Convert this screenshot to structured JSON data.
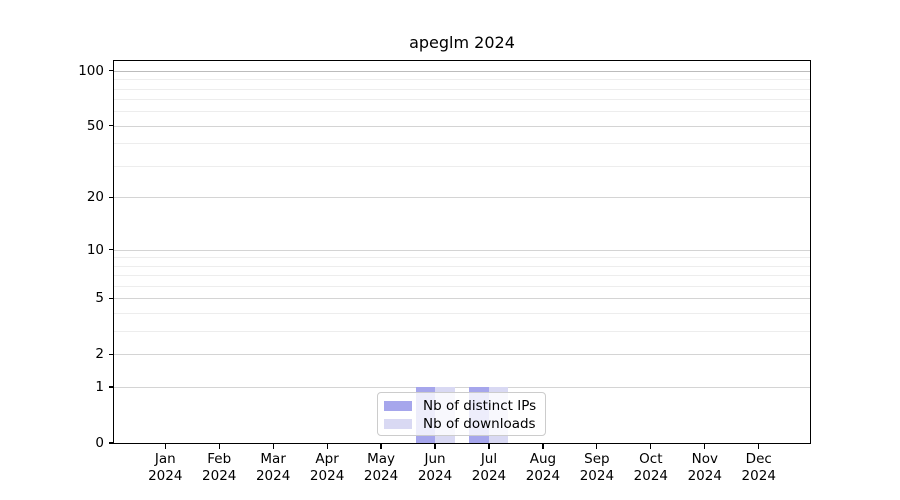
{
  "title": "apeglm 2024",
  "chart_data": {
    "type": "bar",
    "title": "apeglm 2024",
    "categories": [
      "Jan",
      "Feb",
      "Mar",
      "Apr",
      "May",
      "Jun",
      "Jul",
      "Aug",
      "Sep",
      "Oct",
      "Nov",
      "Dec"
    ],
    "x_tick_line2": "2024",
    "series": [
      {
        "name": "Nb of distinct IPs",
        "color": "#a6a6ec",
        "values": [
          0,
          0,
          0,
          0,
          0,
          1,
          1,
          0,
          0,
          0,
          0,
          0
        ]
      },
      {
        "name": "Nb of downloads",
        "color": "#d9d9f3",
        "values": [
          0,
          0,
          0,
          0,
          0,
          1,
          1,
          0,
          0,
          0,
          0,
          0
        ]
      }
    ],
    "xlabel": "",
    "ylabel": "",
    "y_scale": "log1p",
    "ylim": [
      0,
      113
    ],
    "y_ticks": [
      0,
      1,
      2,
      5,
      10,
      20,
      50,
      100
    ],
    "y_minor_ticks": [
      3,
      4,
      6,
      7,
      8,
      9,
      30,
      40,
      60,
      70,
      80,
      90
    ],
    "grid": true,
    "legend_position": "bottom-center",
    "colors": {
      "major_grid": "#d4d4d4",
      "top_grid": "#bcbcbc",
      "minor_grid": "#ededed",
      "axis": "#000000",
      "legend_border": "#cccccc"
    }
  }
}
